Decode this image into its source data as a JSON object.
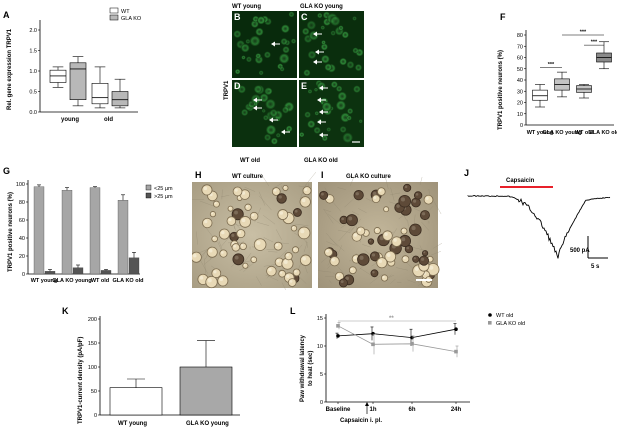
{
  "panels": {
    "A": {
      "label": "A",
      "ylabel": "Rel. gene expression TRPV1",
      "yticks": [
        "0.0",
        "0.5",
        "1.0",
        "1.5",
        "2.0"
      ],
      "groups": [
        "young",
        "old"
      ],
      "legend": [
        "WT",
        "GLA KO"
      ],
      "colors": {
        "WT": "#ffffff",
        "GLA KO": "#b8b8b8"
      }
    },
    "B_E": {
      "labels": [
        "B",
        "C",
        "D",
        "E"
      ],
      "title_left": "WT young",
      "title_right": "GLA KO young",
      "bottom_left": "WT old",
      "bottom_right": "GLA KO old",
      "side_label": "TRPV1"
    },
    "F": {
      "label": "F",
      "ylabel": "TRPV1 positive neurons (%)",
      "yticks": [
        "0",
        "10",
        "20",
        "30",
        "40",
        "50",
        "60",
        "70",
        "80"
      ],
      "groups": [
        "WT young",
        "GLA KO young",
        "WT old",
        "GLA KO old"
      ],
      "significance": [
        "***",
        "***",
        "***"
      ]
    },
    "G": {
      "label": "G",
      "ylabel": "TRPV1 positive neurons (%)",
      "yticks": [
        "0",
        "20",
        "40",
        "60",
        "80",
        "100"
      ],
      "groups": [
        "WT young",
        "GLA KO young",
        "WT old",
        "GLA KO old"
      ],
      "legend": [
        "<25 µm",
        ">25 µm"
      ]
    },
    "H": {
      "label": "H",
      "title": "WT culture"
    },
    "I": {
      "label": "I",
      "title": "GLA KO culture"
    },
    "J": {
      "label": "J",
      "stimulus": "Capsaicin",
      "scale_y": "500 pA",
      "scale_x": "5 s"
    },
    "K": {
      "label": "K",
      "ylabel": "TRPV1-current density (pA/pF)",
      "yticks": [
        "0",
        "50",
        "100",
        "150",
        "200"
      ],
      "groups": [
        "WT young",
        "GLA KO young"
      ]
    },
    "L": {
      "label": "L",
      "ylabel_1": "Paw withdrawal latency",
      "ylabel_2": "to heat (sec)",
      "yticks": [
        "0",
        "5",
        "10",
        "15"
      ],
      "xticks": [
        "Baseline",
        "1h",
        "6h",
        "24h"
      ],
      "legend": [
        "WT old",
        "GLA KO old"
      ],
      "significance": "**",
      "xnote": "Capsaicin i. pl."
    }
  },
  "chart_data": [
    {
      "type": "box",
      "panel": "A",
      "categories": [
        "young",
        "old"
      ],
      "ylabel": "Rel. gene expression TRPV1",
      "ylim": [
        0,
        2.0
      ],
      "series": [
        {
          "name": "WT",
          "boxes": [
            {
              "min": 0.6,
              "q1": 0.72,
              "median": 0.88,
              "q3": 1.02,
              "max": 1.1
            },
            {
              "min": 0.1,
              "q1": 0.2,
              "median": 0.35,
              "q3": 0.7,
              "max": 1.1
            }
          ]
        },
        {
          "name": "GLA KO",
          "boxes": [
            {
              "min": 0.15,
              "q1": 0.3,
              "median": 1.05,
              "q3": 1.2,
              "max": 1.35
            },
            {
              "min": 0.1,
              "q1": 0.15,
              "median": 0.3,
              "q3": 0.5,
              "max": 0.8
            }
          ]
        }
      ]
    },
    {
      "type": "box",
      "panel": "F",
      "categories": [
        "WT young",
        "GLA KO young",
        "WT old",
        "GLA KO old"
      ],
      "ylabel": "TRPV1 positive neurons (%)",
      "ylim": [
        0,
        80
      ],
      "boxes": [
        {
          "min": 16,
          "q1": 22,
          "median": 26,
          "q3": 31,
          "max": 36
        },
        {
          "min": 25,
          "q1": 31,
          "median": 36,
          "q3": 41,
          "max": 47
        },
        {
          "min": 24,
          "q1": 29,
          "median": 32,
          "q3": 35,
          "max": 36
        },
        {
          "min": 50,
          "q1": 56,
          "median": 60,
          "q3": 64,
          "max": 74
        }
      ],
      "colors": [
        "#ffffff",
        "#c4c4c4",
        "#c4c4c4",
        "#8a8a8a"
      ]
    },
    {
      "type": "bar",
      "panel": "G",
      "categories": [
        "WT young",
        "GLA KO young",
        "WT old",
        "GLA KO old"
      ],
      "ylabel": "TRPV1 positive neurons (%)",
      "ylim": [
        0,
        100
      ],
      "series": [
        {
          "name": "<25 µm",
          "values": [
            97,
            93,
            96,
            82
          ],
          "errors": [
            2,
            3,
            1,
            6
          ],
          "color": "#a6a6a6"
        },
        {
          "name": ">25 µm",
          "values": [
            3,
            7,
            4,
            18
          ],
          "errors": [
            2,
            3,
            1,
            6
          ],
          "color": "#555555"
        }
      ]
    },
    {
      "type": "bar",
      "panel": "K",
      "categories": [
        "WT young",
        "GLA KO young"
      ],
      "ylabel": "TRPV1-current density (pA/pF)",
      "ylim": [
        0,
        200
      ],
      "values": [
        57,
        100
      ],
      "errors": [
        18,
        55
      ],
      "colors": [
        "#ffffff",
        "#a8a8a8"
      ]
    },
    {
      "type": "line",
      "panel": "L",
      "categories": [
        "Baseline",
        "1h",
        "6h",
        "24h"
      ],
      "ylim": [
        0,
        15
      ],
      "series": [
        {
          "name": "WT old",
          "values": [
            11.8,
            12.2,
            11.5,
            13.0
          ],
          "errors": [
            0.5,
            1.2,
            1.5,
            1.0
          ],
          "color": "#000000"
        },
        {
          "name": "GLA KO old",
          "values": [
            13.6,
            10.3,
            10.4,
            9.0
          ],
          "errors": [
            0.6,
            1.8,
            1.4,
            1.0
          ],
          "color": "#999999"
        }
      ]
    }
  ]
}
